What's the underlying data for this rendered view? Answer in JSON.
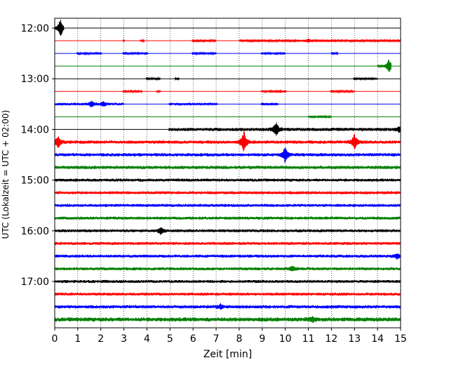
{
  "chart_data": {
    "type": "line",
    "xlabel": "Zeit  [min]",
    "ylabel": "UTC (Lokalzeit = UTC + 02:00)",
    "xlim": [
      0,
      15
    ],
    "x_ticks": [
      0,
      1,
      2,
      3,
      4,
      5,
      6,
      7,
      8,
      9,
      10,
      11,
      12,
      13,
      14,
      15
    ],
    "x_tick_labels": [
      "0",
      "1",
      "2",
      "3",
      "4",
      "5",
      "6",
      "7",
      "8",
      "9",
      "10",
      "11",
      "12",
      "13",
      "14",
      "15"
    ],
    "grid": {
      "x": true,
      "style": "dotted"
    },
    "colors": {
      "cycle": [
        "#000000",
        "#ff0000",
        "#0000ff",
        "#008000"
      ]
    },
    "y_tick_labels": [
      {
        "label": "12:00",
        "row": 0
      },
      {
        "label": "13:00",
        "row": 4
      },
      {
        "label": "14:00",
        "row": 8
      },
      {
        "label": "15:00",
        "row": 12
      },
      {
        "label": "16:00",
        "row": 16
      },
      {
        "label": "17:00",
        "row": 20
      }
    ],
    "rows": [
      {
        "start": "12:00",
        "color": "#000000",
        "amp": 0.1,
        "segments": [
          [
            0,
            0.4
          ],
          [
            0.4,
            15,
            0
          ]
        ],
        "events": [
          {
            "t": 0.25,
            "a": 1.6
          }
        ]
      },
      {
        "start": "12:15",
        "color": "#ff0000",
        "amp": 0.1,
        "segments": [
          [
            2.95,
            3.05
          ],
          [
            3.7,
            3.9
          ],
          [
            5.95,
            7.0
          ],
          [
            8.0,
            15.0
          ]
        ],
        "events": [
          {
            "t": 11.0,
            "a": 0.35
          }
        ]
      },
      {
        "start": "12:30",
        "color": "#0000ff",
        "amp": 0.1,
        "segments": [
          [
            0.95,
            2.05
          ],
          [
            2.95,
            4.05
          ],
          [
            5.95,
            7.0
          ],
          [
            8.95,
            10.0
          ],
          [
            12.0,
            12.3
          ]
        ],
        "events": []
      },
      {
        "start": "12:45",
        "color": "#008000",
        "amp": 0.1,
        "segments": [
          [
            14.0,
            14.6
          ]
        ],
        "events": [
          {
            "t": 14.5,
            "a": 1.2
          }
        ]
      },
      {
        "start": "13:00",
        "color": "#000000",
        "amp": 0.1,
        "segments": [
          [
            3.95,
            4.6
          ],
          [
            5.2,
            5.4
          ],
          [
            12.95,
            14.0
          ]
        ],
        "events": []
      },
      {
        "start": "13:15",
        "color": "#ff0000",
        "amp": 0.12,
        "segments": [
          [
            2.95,
            3.8
          ],
          [
            4.4,
            4.6
          ],
          [
            8.95,
            10.05
          ],
          [
            11.95,
            13.0
          ]
        ],
        "events": []
      },
      {
        "start": "13:30",
        "color": "#0000ff",
        "amp": 0.15,
        "segments": [
          [
            0,
            3.0
          ],
          [
            4.95,
            7.05
          ],
          [
            8.95,
            9.7
          ]
        ],
        "events": [
          {
            "t": 1.6,
            "a": 0.5
          },
          {
            "t": 2.1,
            "a": 0.4
          }
        ]
      },
      {
        "start": "13:45",
        "color": "#008000",
        "amp": 0.1,
        "segments": [
          [
            11.0,
            12.0
          ]
        ],
        "events": []
      },
      {
        "start": "14:00",
        "color": "#000000",
        "amp": 0.2,
        "segments": [
          [
            4.95,
            15.0
          ]
        ],
        "events": [
          {
            "t": 9.6,
            "a": 1.2
          },
          {
            "t": 14.95,
            "a": 0.4
          }
        ]
      },
      {
        "start": "14:15",
        "color": "#ff0000",
        "amp": 0.2,
        "segments": [
          [
            0,
            15.0
          ]
        ],
        "events": [
          {
            "t": 0.15,
            "a": 1.0
          },
          {
            "t": 8.2,
            "a": 1.8
          },
          {
            "t": 13.0,
            "a": 1.2
          }
        ]
      },
      {
        "start": "14:30",
        "color": "#0000ff",
        "amp": 0.2,
        "segments": [
          [
            0,
            15.0
          ]
        ],
        "events": [
          {
            "t": 10.0,
            "a": 1.3
          }
        ]
      },
      {
        "start": "14:45",
        "color": "#008000",
        "amp": 0.2,
        "segments": [
          [
            0,
            15.0
          ]
        ],
        "events": []
      },
      {
        "start": "15:00",
        "color": "#000000",
        "amp": 0.18,
        "segments": [
          [
            0,
            15.0
          ]
        ],
        "events": []
      },
      {
        "start": "15:15",
        "color": "#ff0000",
        "amp": 0.18,
        "segments": [
          [
            0,
            15.0
          ]
        ],
        "events": []
      },
      {
        "start": "15:30",
        "color": "#0000ff",
        "amp": 0.18,
        "segments": [
          [
            0,
            15.0
          ]
        ],
        "events": []
      },
      {
        "start": "15:45",
        "color": "#008000",
        "amp": 0.18,
        "segments": [
          [
            0,
            15.0
          ]
        ],
        "events": []
      },
      {
        "start": "16:00",
        "color": "#000000",
        "amp": 0.18,
        "segments": [
          [
            0,
            15.0
          ]
        ],
        "events": [
          {
            "t": 4.6,
            "a": 0.6
          }
        ]
      },
      {
        "start": "16:15",
        "color": "#ff0000",
        "amp": 0.18,
        "segments": [
          [
            0,
            15.0
          ]
        ],
        "events": []
      },
      {
        "start": "16:30",
        "color": "#0000ff",
        "amp": 0.18,
        "segments": [
          [
            0,
            15.0
          ]
        ],
        "events": [
          {
            "t": 14.85,
            "a": 0.4
          }
        ]
      },
      {
        "start": "16:45",
        "color": "#008000",
        "amp": 0.18,
        "segments": [
          [
            0,
            15.0
          ]
        ],
        "events": [
          {
            "t": 10.3,
            "a": 0.4
          }
        ]
      },
      {
        "start": "17:00",
        "color": "#000000",
        "amp": 0.18,
        "segments": [
          [
            0,
            15.0
          ]
        ],
        "events": []
      },
      {
        "start": "17:15",
        "color": "#ff0000",
        "amp": 0.18,
        "segments": [
          [
            0,
            15.0
          ]
        ],
        "events": []
      },
      {
        "start": "17:30",
        "color": "#0000ff",
        "amp": 0.2,
        "segments": [
          [
            0,
            15.0
          ]
        ],
        "events": [
          {
            "t": 7.2,
            "a": 0.35
          }
        ]
      },
      {
        "start": "17:45",
        "color": "#008000",
        "amp": 0.25,
        "segments": [
          [
            0,
            15.0
          ]
        ],
        "events": [
          {
            "t": 11.2,
            "a": 0.35
          }
        ]
      }
    ]
  }
}
